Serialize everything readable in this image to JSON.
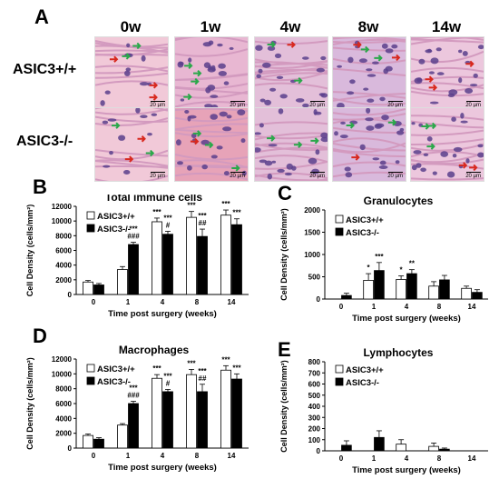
{
  "panelA": {
    "letter": "A",
    "columns": [
      "0w",
      "1w",
      "4w",
      "8w",
      "14w"
    ],
    "rows": [
      "ASIC3+/+",
      "ASIC3-/-"
    ],
    "scale_label": "20 µm"
  },
  "chart_data": [
    {
      "panel": "B",
      "type": "bar",
      "title": "Total immune cells",
      "xlabel": "Time post surgery (weeks)",
      "ylabel": "Cell Density (cells/mm²)",
      "ylim": [
        0,
        12000
      ],
      "yticks": [
        0,
        2000,
        4000,
        6000,
        8000,
        10000,
        12000
      ],
      "categories": [
        "0",
        "1",
        "4",
        "8",
        "14"
      ],
      "legend_position": "top-left",
      "series": [
        {
          "name": "ASIC3+/+",
          "color": "#ffffff",
          "values": [
            1700,
            3400,
            9900,
            10500,
            10800
          ],
          "errors": [
            200,
            400,
            500,
            800,
            700
          ]
        },
        {
          "name": "ASIC3-/-",
          "color": "#000000",
          "values": [
            1300,
            6800,
            8200,
            7900,
            9500
          ],
          "errors": [
            200,
            300,
            400,
            1000,
            800
          ]
        }
      ],
      "annotations": [
        {
          "category": "4",
          "series": "ASIC3+/+",
          "text": "***"
        },
        {
          "category": "4",
          "series": "ASIC3-/-",
          "text": "#"
        },
        {
          "category": "4",
          "series": "ASIC3-/-",
          "text": "***"
        },
        {
          "category": "8",
          "series": "ASIC3+/+",
          "text": "***"
        },
        {
          "category": "8",
          "series": "ASIC3-/-",
          "text": "##"
        },
        {
          "category": "8",
          "series": "ASIC3-/-",
          "text": "***"
        },
        {
          "category": "14",
          "series": "ASIC3+/+",
          "text": "***"
        },
        {
          "category": "14",
          "series": "ASIC3-/-",
          "text": "***"
        },
        {
          "category": "1",
          "series": "ASIC3-/-",
          "text": "###"
        },
        {
          "category": "1",
          "series": "ASIC3-/-",
          "text": "***"
        }
      ]
    },
    {
      "panel": "C",
      "type": "bar",
      "title": "Granulocytes",
      "xlabel": "Time post surgery (weeks)",
      "ylabel": "Cell Density (cells/mm²)",
      "ylim": [
        0,
        2000
      ],
      "yticks": [
        0,
        500,
        1000,
        1500,
        2000
      ],
      "categories": [
        "0",
        "1",
        "4",
        "8",
        "14"
      ],
      "legend_position": "top-left",
      "series": [
        {
          "name": "ASIC3+/+",
          "color": "#ffffff",
          "values": [
            0,
            420,
            440,
            290,
            240
          ],
          "errors": [
            0,
            150,
            80,
            100,
            50
          ]
        },
        {
          "name": "ASIC3-/-",
          "color": "#000000",
          "values": [
            80,
            640,
            570,
            430,
            150
          ],
          "errors": [
            50,
            180,
            90,
            100,
            60
          ]
        }
      ],
      "annotations": [
        {
          "category": "1",
          "series": "ASIC3+/+",
          "text": "*"
        },
        {
          "category": "1",
          "series": "ASIC3-/-",
          "text": "***"
        },
        {
          "category": "4",
          "series": "ASIC3+/+",
          "text": "*"
        },
        {
          "category": "4",
          "series": "ASIC3-/-",
          "text": "**"
        }
      ]
    },
    {
      "panel": "D",
      "type": "bar",
      "title": "Macrophages",
      "xlabel": "Time post surgery (weeks)",
      "ylabel": "Cell Density (cells/mm²)",
      "ylim": [
        0,
        12000
      ],
      "yticks": [
        0,
        2000,
        4000,
        6000,
        8000,
        10000,
        12000
      ],
      "categories": [
        "0",
        "1",
        "4",
        "8",
        "14"
      ],
      "legend_position": "top-left",
      "series": [
        {
          "name": "ASIC3+/+",
          "color": "#ffffff",
          "values": [
            1700,
            3100,
            9400,
            9900,
            10500
          ],
          "errors": [
            200,
            200,
            500,
            700,
            600
          ]
        },
        {
          "name": "ASIC3-/-",
          "color": "#000000",
          "values": [
            1200,
            6000,
            7600,
            7600,
            9300
          ],
          "errors": [
            200,
            300,
            300,
            1000,
            700
          ]
        }
      ],
      "annotations": [
        {
          "category": "4",
          "series": "ASIC3+/+",
          "text": "***"
        },
        {
          "category": "4",
          "series": "ASIC3-/-",
          "text": "#"
        },
        {
          "category": "4",
          "series": "ASIC3-/-",
          "text": "***"
        },
        {
          "category": "8",
          "series": "ASIC3+/+",
          "text": "***"
        },
        {
          "category": "8",
          "series": "ASIC3-/-",
          "text": "##"
        },
        {
          "category": "8",
          "series": "ASIC3-/-",
          "text": "***"
        },
        {
          "category": "14",
          "series": "ASIC3+/+",
          "text": "***"
        },
        {
          "category": "14",
          "series": "ASIC3-/-",
          "text": "***"
        },
        {
          "category": "1",
          "series": "ASIC3-/-",
          "text": "###"
        },
        {
          "category": "1",
          "series": "ASIC3-/-",
          "text": "***"
        }
      ]
    },
    {
      "panel": "E",
      "type": "bar",
      "title": "Lymphocytes",
      "xlabel": "Time post surgery (weeks)",
      "ylabel": "Cell Density (cells/mm²)",
      "ylim": [
        0,
        800
      ],
      "yticks": [
        0,
        100,
        200,
        300,
        400,
        500,
        600,
        700,
        800
      ],
      "categories": [
        "0",
        "1",
        "4",
        "8",
        "14"
      ],
      "legend_position": "top-left",
      "series": [
        {
          "name": "ASIC3+/+",
          "color": "#ffffff",
          "values": [
            0,
            0,
            60,
            40,
            0
          ],
          "errors": [
            0,
            0,
            40,
            30,
            0
          ]
        },
        {
          "name": "ASIC3-/-",
          "color": "#000000",
          "values": [
            50,
            120,
            0,
            15,
            0
          ],
          "errors": [
            40,
            60,
            0,
            10,
            0
          ]
        }
      ],
      "annotations": []
    }
  ]
}
